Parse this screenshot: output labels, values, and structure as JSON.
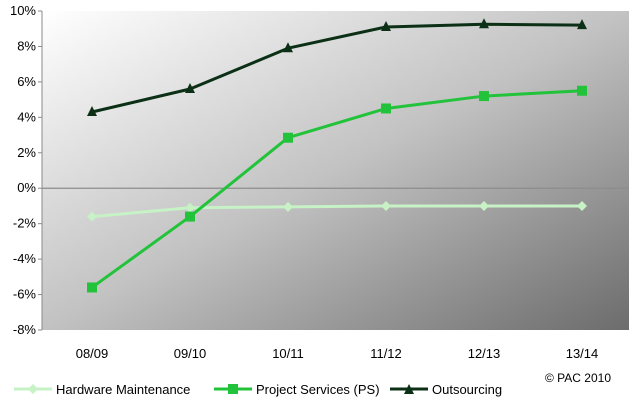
{
  "chart_data": {
    "type": "line",
    "title": "",
    "xlabel": "",
    "ylabel": "",
    "categories": [
      "08/09",
      "09/10",
      "10/11",
      "11/12",
      "12/13",
      "13/14"
    ],
    "ylim": [
      -8,
      10
    ],
    "yticks": [
      -8,
      -6,
      -4,
      -2,
      0,
      2,
      4,
      6,
      8,
      10
    ],
    "ytick_labels": [
      "-8%",
      "-6%",
      "-4%",
      "-2%",
      "0%",
      "2%",
      "4%",
      "6%",
      "8%",
      "10%"
    ],
    "grid": false,
    "legend_position": "bottom",
    "background": "gradient-light-to-dark",
    "series": [
      {
        "name": "Hardware Maintenance",
        "color": "#c6f2c6",
        "marker": "diamond",
        "values": [
          -1.6,
          -1.1,
          -1.05,
          -1.0,
          -1.0,
          -1.0
        ]
      },
      {
        "name": "Project Services (PS)",
        "color": "#22c33a",
        "marker": "square",
        "values": [
          -5.6,
          -1.6,
          2.85,
          4.5,
          5.2,
          5.5
        ]
      },
      {
        "name": "Outsourcing",
        "color": "#0c3016",
        "marker": "triangle",
        "values": [
          4.3,
          5.6,
          7.9,
          9.1,
          9.25,
          9.2
        ]
      }
    ]
  },
  "copyright": "© PAC 2010"
}
